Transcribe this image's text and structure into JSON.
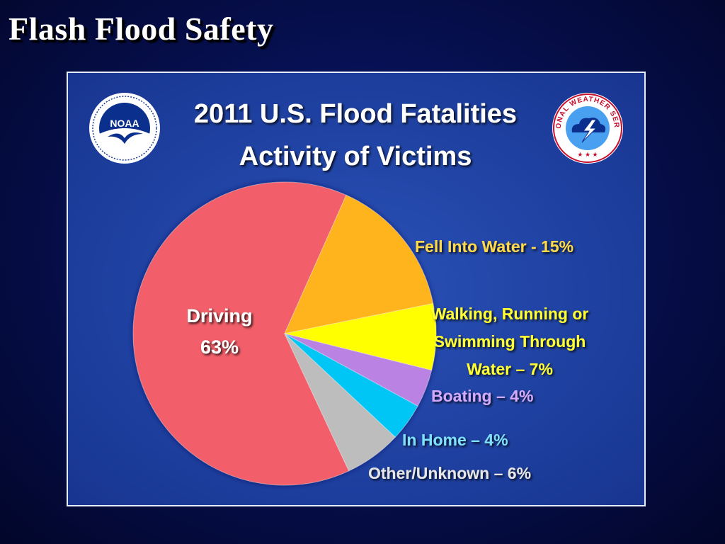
{
  "slide": {
    "title": "Flash Flood Safety"
  },
  "logos": {
    "left": {
      "text": "NOAA",
      "icon": "noaa-logo-icon"
    },
    "right": {
      "text": "NATIONAL WEATHER SERVICE",
      "icon": "nws-logo-icon"
    }
  },
  "chart_data": {
    "type": "pie",
    "title": "2011 U.S. Flood Fatalities",
    "subtitle": "Activity of Victims",
    "slices": [
      {
        "label_lines": [
          "Driving",
          "63%"
        ],
        "value": 63,
        "color": "#f25f6a",
        "label_color": "#ffffff"
      },
      {
        "label_lines": [
          "Fell Into Water - 15%"
        ],
        "value": 15,
        "color": "#ffb31f",
        "label_color": "#ffd94a"
      },
      {
        "label_lines": [
          "Walking, Running or",
          "Swimming  Through",
          "Water – 7%"
        ],
        "value": 7,
        "color": "#ffff00",
        "label_color": "#ffff33"
      },
      {
        "label_lines": [
          "Boating – 4%"
        ],
        "value": 4,
        "color": "#b982e3",
        "label_color": "#d2a9ff"
      },
      {
        "label_lines": [
          "In Home – 4%"
        ],
        "value": 4,
        "color": "#00c6f5",
        "label_color": "#7fe0ff"
      },
      {
        "label_lines": [
          "Other/Unknown – 6%"
        ],
        "value": 6,
        "color": "#bdbdbd",
        "label_color": "#e6e6e6"
      }
    ],
    "legend": "none"
  }
}
